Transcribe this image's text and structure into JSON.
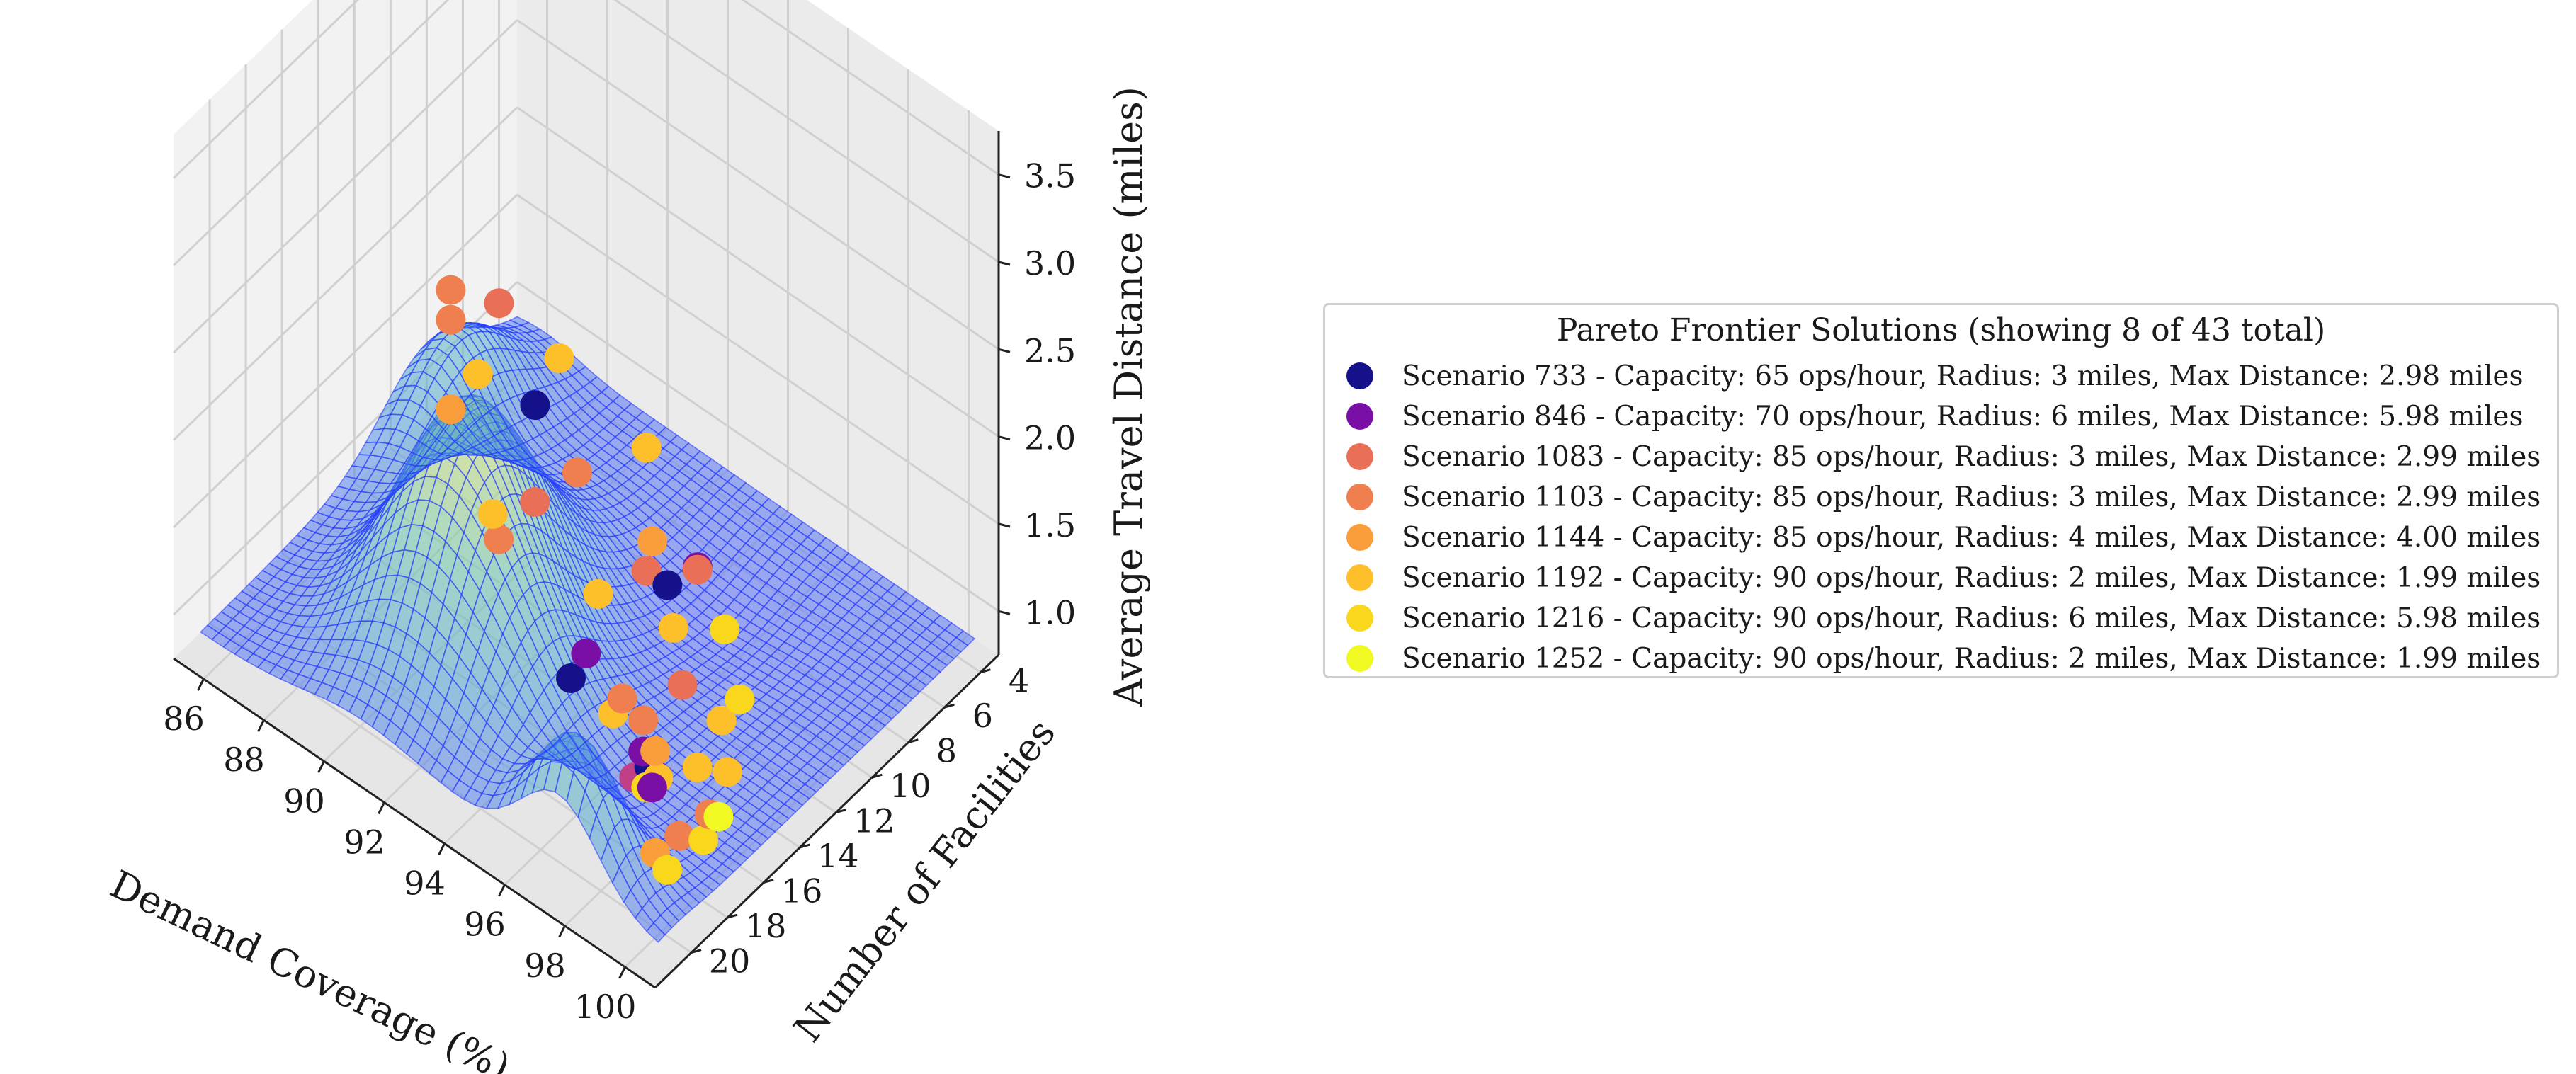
{
  "chart_data": {
    "type": "scatter",
    "projection": "3d",
    "title": "",
    "xlabel": "Demand Coverage (%)",
    "ylabel": "Number of Facilities",
    "zlabel": "Average Travel Distance (miles)",
    "xlim": [
      85,
      101
    ],
    "ylim": [
      3,
      22
    ],
    "zlim": [
      0.75,
      3.75
    ],
    "x_ticks": [
      "86",
      "88",
      "90",
      "92",
      "94",
      "96",
      "98",
      "100"
    ],
    "y_ticks": [
      "4",
      "6",
      "8",
      "10",
      "12",
      "14",
      "16",
      "18",
      "20"
    ],
    "z_ticks": [
      "1.0",
      "1.5",
      "2.0",
      "2.5",
      "3.0",
      "3.5"
    ],
    "grid": true,
    "surface": {
      "colormap": "viridis",
      "alpha": 0.5,
      "wire_color": "#2233ff"
    },
    "legend": {
      "title": "Pareto Frontier Solutions (showing 8 of 43 total)",
      "placement": "right",
      "entries": [
        {
          "label": "Scenario 733 - Capacity: 65 ops/hour, Radius: 3 miles, Max Distance: 2.98 miles",
          "color": "#14118a"
        },
        {
          "label": "Scenario 846 - Capacity: 70 ops/hour, Radius: 6 miles, Max Distance: 5.98 miles",
          "color": "#7a0fa6"
        },
        {
          "label": "Scenario 1083 - Capacity: 85 ops/hour, Radius: 3 miles, Max Distance: 2.99 miles",
          "color": "#ea6f57"
        },
        {
          "label": "Scenario 1103 - Capacity: 85 ops/hour, Radius: 3 miles, Max Distance: 2.99 miles",
          "color": "#f07f4f"
        },
        {
          "label": "Scenario 1144 - Capacity: 85 ops/hour, Radius: 4 miles, Max Distance: 4.00 miles",
          "color": "#fa9e3b"
        },
        {
          "label": "Scenario 1192 - Capacity: 90 ops/hour, Radius: 2 miles, Max Distance: 1.99 miles",
          "color": "#fdc02a"
        },
        {
          "label": "Scenario 1216 - Capacity: 90 ops/hour, Radius: 6 miles, Max Distance: 5.98 miles",
          "color": "#f8d71c"
        },
        {
          "label": "Scenario 1252 - Capacity: 90 ops/hour, Radius: 2 miles, Max Distance: 1.99 miles",
          "color": "#f0f921"
        }
      ]
    },
    "points": [
      {
        "x": 85.6,
        "y": 5.0,
        "z": 1.15,
        "color": "#ea6f57"
      },
      {
        "x": 85.8,
        "y": 8.0,
        "z": 1.55,
        "color": "#f07f4f"
      },
      {
        "x": 86.4,
        "y": 9.0,
        "z": 1.55,
        "color": "#f07f4f"
      },
      {
        "x": 87.0,
        "y": 4.0,
        "z": 0.9,
        "color": "#fdc02a"
      },
      {
        "x": 88.0,
        "y": 7.0,
        "z": 1.05,
        "color": "#14118a"
      },
      {
        "x": 88.2,
        "y": 12.0,
        "z": 1.55,
        "color": "#fa9e3b"
      },
      {
        "x": 90.5,
        "y": 5.0,
        "z": 0.9,
        "color": "#fdc02a"
      },
      {
        "x": 90.0,
        "y": 8.0,
        "z": 1.0,
        "color": "#f07f4f"
      },
      {
        "x": 90.3,
        "y": 14.0,
        "z": 2.2,
        "color": "#fdc02a"
      },
      {
        "x": 91.0,
        "y": 12.0,
        "z": 1.35,
        "color": "#ea6f57"
      },
      {
        "x": 92.5,
        "y": 8.0,
        "z": 0.9,
        "color": "#fa9e3b"
      },
      {
        "x": 92.5,
        "y": 11.0,
        "z": 0.9,
        "color": "#fdc02a"
      },
      {
        "x": 92.0,
        "y": 16.0,
        "z": 1.8,
        "color": "#fdc02a"
      },
      {
        "x": 92.8,
        "y": 17.0,
        "z": 1.85,
        "color": "#f07f4f"
      },
      {
        "x": 93.5,
        "y": 10.0,
        "z": 1.05,
        "color": "#ea6f57"
      },
      {
        "x": 94.2,
        "y": 10.0,
        "z": 1.05,
        "color": "#14118a"
      },
      {
        "x": 94.6,
        "y": 9.0,
        "z": 1.1,
        "color": "#7a0fa6"
      },
      {
        "x": 94.3,
        "y": 8.5,
        "z": 1.0,
        "color": "#ea6f57"
      },
      {
        "x": 95.5,
        "y": 9.0,
        "z": 0.85,
        "color": "#f8d71c"
      },
      {
        "x": 95.0,
        "y": 11.0,
        "z": 1.0,
        "color": "#fdc02a"
      },
      {
        "x": 96.5,
        "y": 13.0,
        "z": 1.05,
        "color": "#ea6f57"
      },
      {
        "x": 96.3,
        "y": 16.0,
        "z": 1.25,
        "color": "#f07f4f"
      },
      {
        "x": 96.6,
        "y": 17.0,
        "z": 1.3,
        "color": "#fdc02a"
      },
      {
        "x": 97.0,
        "y": 20.0,
        "z": 1.85,
        "color": "#14118a"
      },
      {
        "x": 97.5,
        "y": 20.0,
        "z": 2.05,
        "color": "#7a0fa6"
      },
      {
        "x": 97.2,
        "y": 11.0,
        "z": 0.85,
        "color": "#f8d71c"
      },
      {
        "x": 97.8,
        "y": 13.0,
        "z": 1.0,
        "color": "#fdc02a"
      },
      {
        "x": 97.6,
        "y": 17.0,
        "z": 1.2,
        "color": "#7a0fa6"
      },
      {
        "x": 98.0,
        "y": 17.0,
        "z": 1.25,
        "color": "#fa9e3b"
      },
      {
        "x": 98.2,
        "y": 18.0,
        "z": 1.55,
        "color": "#f07f4f"
      },
      {
        "x": 98.5,
        "y": 18.0,
        "z": 1.2,
        "color": "#7a0fa6"
      },
      {
        "x": 98.6,
        "y": 14.0,
        "z": 0.9,
        "color": "#fdc02a"
      },
      {
        "x": 98.8,
        "y": 16.0,
        "z": 1.15,
        "color": "#fdc02a"
      },
      {
        "x": 98.9,
        "y": 19.0,
        "z": 1.35,
        "color": "#f8d71c"
      },
      {
        "x": 99.3,
        "y": 19.0,
        "z": 1.45,
        "color": "#fdc02a"
      },
      {
        "x": 99.5,
        "y": 16.0,
        "z": 0.95,
        "color": "#f0f921"
      },
      {
        "x": 99.6,
        "y": 20.0,
        "z": 1.65,
        "color": "#14118a"
      },
      {
        "x": 99.7,
        "y": 21.0,
        "z": 1.7,
        "color": "#c13f87"
      },
      {
        "x": 99.8,
        "y": 17.0,
        "z": 1.1,
        "color": "#f07f4f"
      },
      {
        "x": 100.0,
        "y": 19.0,
        "z": 1.2,
        "color": "#f07f4f"
      },
      {
        "x": 100.2,
        "y": 18.0,
        "z": 1.1,
        "color": "#f8d71c"
      },
      {
        "x": 100.4,
        "y": 21.0,
        "z": 1.35,
        "color": "#fa9e3b"
      },
      {
        "x": 100.8,
        "y": 21.0,
        "z": 1.3,
        "color": "#f8d71c"
      }
    ]
  }
}
